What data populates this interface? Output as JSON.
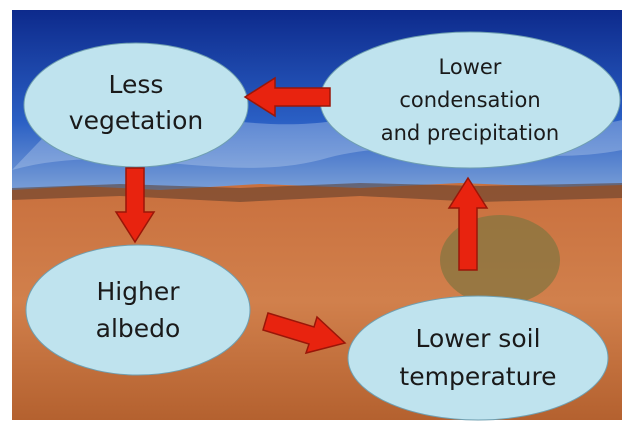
{
  "nodes": [
    {
      "lines": [
        "Less",
        "vegetation"
      ]
    },
    {
      "lines": [
        "Lower",
        "condensation",
        "and precipitation"
      ]
    },
    {
      "lines": [
        "Higher",
        "albedo"
      ]
    },
    {
      "lines": [
        "Lower soil",
        "temperature"
      ]
    }
  ]
}
